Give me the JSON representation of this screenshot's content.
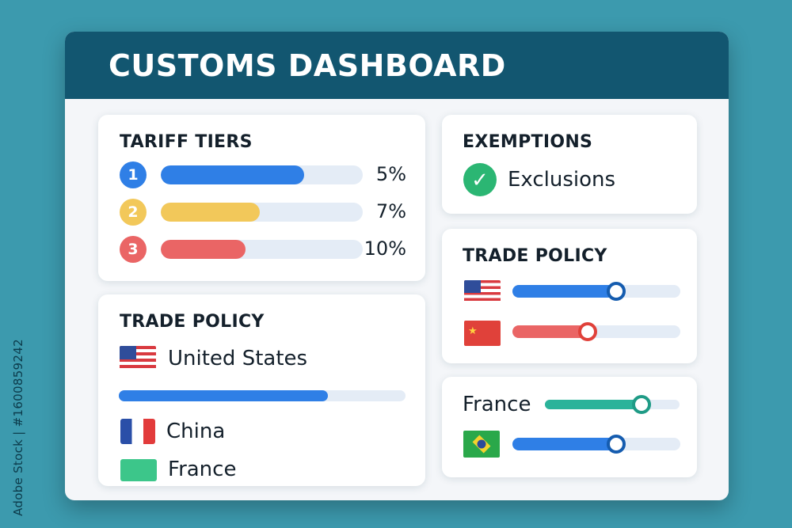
{
  "watermark_id": "Adobe Stock | #1600859242",
  "header": {
    "title": "CUSTOMS DASHBOARD"
  },
  "tariff_tiers": {
    "title": "TARIFF TIERS",
    "tiers": [
      {
        "num": "1",
        "value_label": "5%",
        "fill": 0.71,
        "color": "#2f7fe6"
      },
      {
        "num": "2",
        "value_label": "7%",
        "fill": 0.49,
        "color": "#f2c85a"
      },
      {
        "num": "3",
        "value_label": "10%",
        "fill": 0.42,
        "color": "#ea6565"
      }
    ]
  },
  "exemptions": {
    "title": "EXEMPTIONS",
    "item": {
      "icon": "check-circle-icon",
      "label": "Exclusions"
    }
  },
  "trade_policy_left": {
    "title": "TRADE POLICY",
    "country_primary": {
      "flag": "us-flag-icon",
      "label": "United States"
    },
    "progress": {
      "fill": 0.73,
      "color": "#2f7fe6"
    },
    "countries": [
      {
        "flag": "france-flag-icon",
        "label": "China"
      },
      {
        "flag": "green-flag-icon",
        "label": "France"
      }
    ]
  },
  "trade_policy_right": {
    "title": "TRADE POLICY",
    "sliders": [
      {
        "flag": "us-flag-icon",
        "level": 0.62,
        "color": "#2f7fe6"
      },
      {
        "flag": "china-flag-icon",
        "level": 0.45,
        "color": "#ea6565"
      }
    ]
  },
  "bottom_sliders": {
    "rows": [
      {
        "label": "France",
        "flag": "",
        "level": 0.72,
        "color": "#2bb39a"
      },
      {
        "label": "",
        "flag": "brazil-flag-icon",
        "level": 0.62,
        "color": "#2f7fe6"
      }
    ]
  },
  "colors": {
    "background": "#3c9aae",
    "header": "#125670",
    "accent_blue": "#2f7fe6",
    "accent_red": "#ea6565",
    "accent_yellow": "#f2c85a",
    "accent_green": "#2bb673"
  }
}
